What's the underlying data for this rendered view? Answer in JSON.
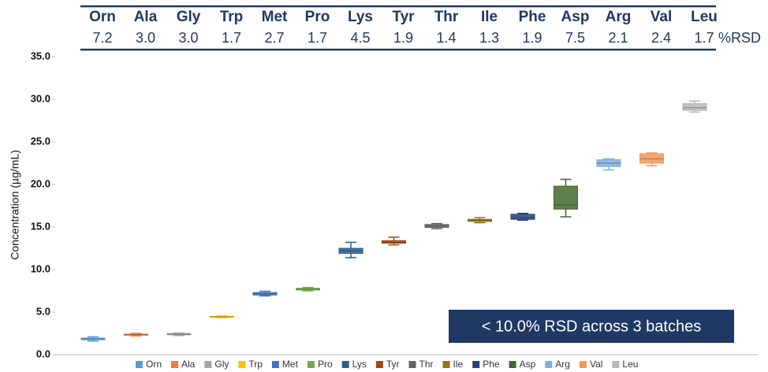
{
  "chart_data": {
    "type": "box",
    "ylabel": "Concentration (µg/mL)",
    "annotation": "< 10.0% RSD across 3 batches",
    "ylim": [
      0,
      35
    ],
    "yticks": [
      {
        "value": 0,
        "label": "0.0"
      },
      {
        "value": 5,
        "label": "5.0"
      },
      {
        "value": 10,
        "label": "10.0"
      },
      {
        "value": 15,
        "label": "15.0"
      },
      {
        "value": 20,
        "label": "20.0"
      },
      {
        "value": 25,
        "label": "25.0"
      },
      {
        "value": 30,
        "label": "30.0"
      },
      {
        "value": 35,
        "label": "35.0"
      }
    ],
    "rsd": {
      "label": "%RSD",
      "values": [
        7.2,
        3.0,
        3.0,
        1.7,
        2.7,
        1.7,
        4.5,
        1.9,
        1.4,
        1.3,
        1.9,
        7.5,
        2.1,
        2.4,
        1.7
      ],
      "value_labels": [
        "7.2",
        "3.0",
        "3.0",
        "1.7",
        "2.7",
        "1.7",
        "4.5",
        "1.9",
        "1.4",
        "1.3",
        "1.9",
        "7.5",
        "2.1",
        "2.4",
        "1.7"
      ]
    },
    "series": [
      {
        "name": "Orn",
        "color": "#5b9bd5",
        "values": [
          1.6,
          1.75,
          1.85,
          1.95,
          2.1
        ]
      },
      {
        "name": "Ala",
        "color": "#ed7d31",
        "values": [
          2.2,
          2.28,
          2.35,
          2.42,
          2.5
        ]
      },
      {
        "name": "Gly",
        "color": "#a5a5a5",
        "values": [
          2.25,
          2.33,
          2.4,
          2.5,
          2.55
        ]
      },
      {
        "name": "Trp",
        "color": "#ffc000",
        "values": [
          4.35,
          4.4,
          4.45,
          4.5,
          4.55
        ]
      },
      {
        "name": "Met",
        "color": "#4472c4",
        "values": [
          6.9,
          7.0,
          7.15,
          7.3,
          7.45
        ]
      },
      {
        "name": "Pro",
        "color": "#70ad47",
        "values": [
          7.5,
          7.6,
          7.7,
          7.8,
          7.9
        ]
      },
      {
        "name": "Lys",
        "color": "#255e91",
        "values": [
          11.4,
          11.9,
          12.2,
          12.5,
          13.2
        ]
      },
      {
        "name": "Tyr",
        "color": "#9e480e",
        "values": [
          12.9,
          13.1,
          13.2,
          13.4,
          13.8
        ]
      },
      {
        "name": "Thr",
        "color": "#636363",
        "values": [
          14.8,
          14.95,
          15.1,
          15.3,
          15.4
        ]
      },
      {
        "name": "Ile",
        "color": "#997300",
        "values": [
          15.5,
          15.65,
          15.8,
          15.9,
          16.1
        ]
      },
      {
        "name": "Phe",
        "color": "#264478",
        "values": [
          15.8,
          15.9,
          16.1,
          16.5,
          16.6
        ]
      },
      {
        "name": "Asp",
        "color": "#43682b",
        "values": [
          16.2,
          17.1,
          17.6,
          19.8,
          20.6
        ]
      },
      {
        "name": "Arg",
        "color": "#7cafdd",
        "values": [
          21.7,
          22.1,
          22.5,
          22.9,
          23.0
        ]
      },
      {
        "name": "Val",
        "color": "#f1975a",
        "values": [
          22.2,
          22.5,
          23.0,
          23.6,
          23.7
        ]
      },
      {
        "name": "Leu",
        "color": "#b7b7b7",
        "values": [
          28.5,
          28.7,
          29.0,
          29.5,
          29.8
        ]
      }
    ]
  }
}
